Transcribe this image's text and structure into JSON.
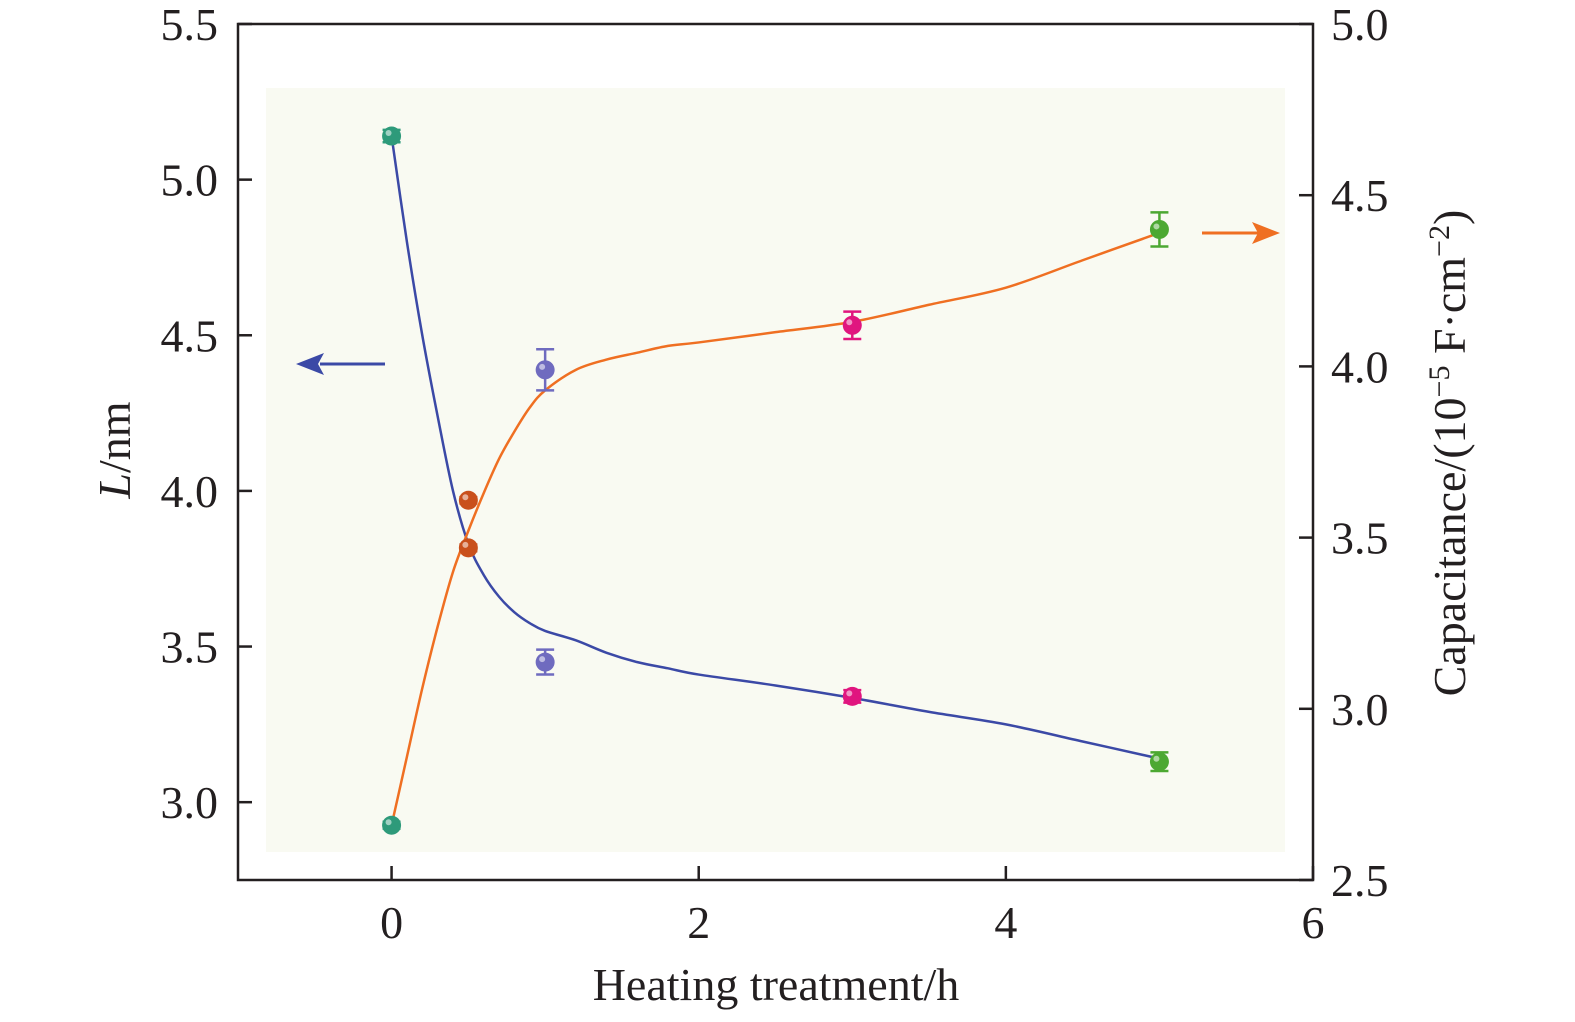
{
  "chart_data": {
    "type": "scatter",
    "x_axis": {
      "label": "Heating treatment/h",
      "range": [
        -1,
        6
      ],
      "ticks": [
        0,
        2,
        4,
        6
      ],
      "tick_labels": [
        "0",
        "2",
        "4",
        "6"
      ]
    },
    "y_left_axis": {
      "label_italic": "L",
      "label_rest": "/nm",
      "range": [
        2.75,
        5.5
      ],
      "ticks": [
        3.0,
        3.5,
        4.0,
        4.5,
        5.0,
        5.5
      ],
      "tick_labels": [
        "3.0",
        "3.5",
        "4.0",
        "4.5",
        "5.0",
        "5.5"
      ]
    },
    "y_right_axis": {
      "label_main": "Capacitance/(10",
      "label_sup1": "−5",
      "label_mid": " F·cm",
      "label_sup2": "−2",
      "label_end": ")",
      "range": [
        2.5,
        5.0
      ],
      "ticks": [
        2.5,
        3.0,
        3.5,
        4.0,
        4.5,
        5.0
      ],
      "tick_labels": [
        "2.5",
        "3.0",
        "3.5",
        "4.0",
        "4.5",
        "5.0"
      ]
    },
    "series": [
      {
        "axis": "left",
        "color": "#3b49a6",
        "arrow": "left",
        "curve": [
          [
            0,
            5.14
          ],
          [
            0.1,
            4.8
          ],
          [
            0.2,
            4.5
          ],
          [
            0.3,
            4.24
          ],
          [
            0.4,
            4.0
          ],
          [
            0.5,
            3.83
          ],
          [
            0.6,
            3.73
          ],
          [
            0.7,
            3.66
          ],
          [
            0.8,
            3.61
          ],
          [
            0.9,
            3.575
          ],
          [
            1.0,
            3.55
          ],
          [
            1.2,
            3.52
          ],
          [
            1.4,
            3.48
          ],
          [
            1.6,
            3.45
          ],
          [
            1.8,
            3.43
          ],
          [
            2.0,
            3.41
          ],
          [
            2.5,
            3.375
          ],
          [
            3.0,
            3.335
          ],
          [
            3.5,
            3.29
          ],
          [
            4.0,
            3.25
          ],
          [
            4.5,
            3.195
          ],
          [
            5.0,
            3.14
          ]
        ],
        "points": [
          {
            "x": 0,
            "y": 5.14,
            "err": 0.02,
            "color": "#2e9a7a"
          },
          {
            "x": 0.5,
            "y": 3.97,
            "err": 0.01,
            "color": "#c9501c"
          },
          {
            "x": 1,
            "y": 3.45,
            "err": 0.04,
            "color": "#6f6bbf"
          },
          {
            "x": 3,
            "y": 3.34,
            "err": 0.02,
            "color": "#e0157f"
          },
          {
            "x": 5,
            "y": 3.13,
            "err": 0.03,
            "color": "#4ca832"
          }
        ]
      },
      {
        "axis": "right",
        "color": "#ef6f22",
        "arrow": "right",
        "curve": [
          [
            0,
            2.66
          ],
          [
            0.1,
            2.86
          ],
          [
            0.2,
            3.06
          ],
          [
            0.3,
            3.24
          ],
          [
            0.4,
            3.4
          ],
          [
            0.5,
            3.52
          ],
          [
            0.6,
            3.63
          ],
          [
            0.7,
            3.73
          ],
          [
            0.8,
            3.81
          ],
          [
            0.9,
            3.88
          ],
          [
            1.0,
            3.93
          ],
          [
            1.2,
            3.99
          ],
          [
            1.4,
            4.02
          ],
          [
            1.6,
            4.04
          ],
          [
            1.8,
            4.06
          ],
          [
            2.0,
            4.07
          ],
          [
            2.5,
            4.1
          ],
          [
            3.0,
            4.13
          ],
          [
            3.5,
            4.18
          ],
          [
            4.0,
            4.23
          ],
          [
            4.5,
            4.31
          ],
          [
            5.0,
            4.39
          ]
        ],
        "points": [
          {
            "x": 0,
            "y": 2.66,
            "err": 0.01,
            "color": "#2e9a7a"
          },
          {
            "x": 0.5,
            "y": 3.47,
            "err": 0.01,
            "color": "#c9501c"
          },
          {
            "x": 1,
            "y": 3.99,
            "err": 0.06,
            "color": "#6f6bbf"
          },
          {
            "x": 3,
            "y": 4.12,
            "err": 0.04,
            "color": "#e0157f"
          },
          {
            "x": 5,
            "y": 4.4,
            "err": 0.05,
            "color": "#4ca832"
          }
        ]
      }
    ],
    "colors": {
      "plot_background": "#f9faf2",
      "axis": "#231f20"
    }
  }
}
